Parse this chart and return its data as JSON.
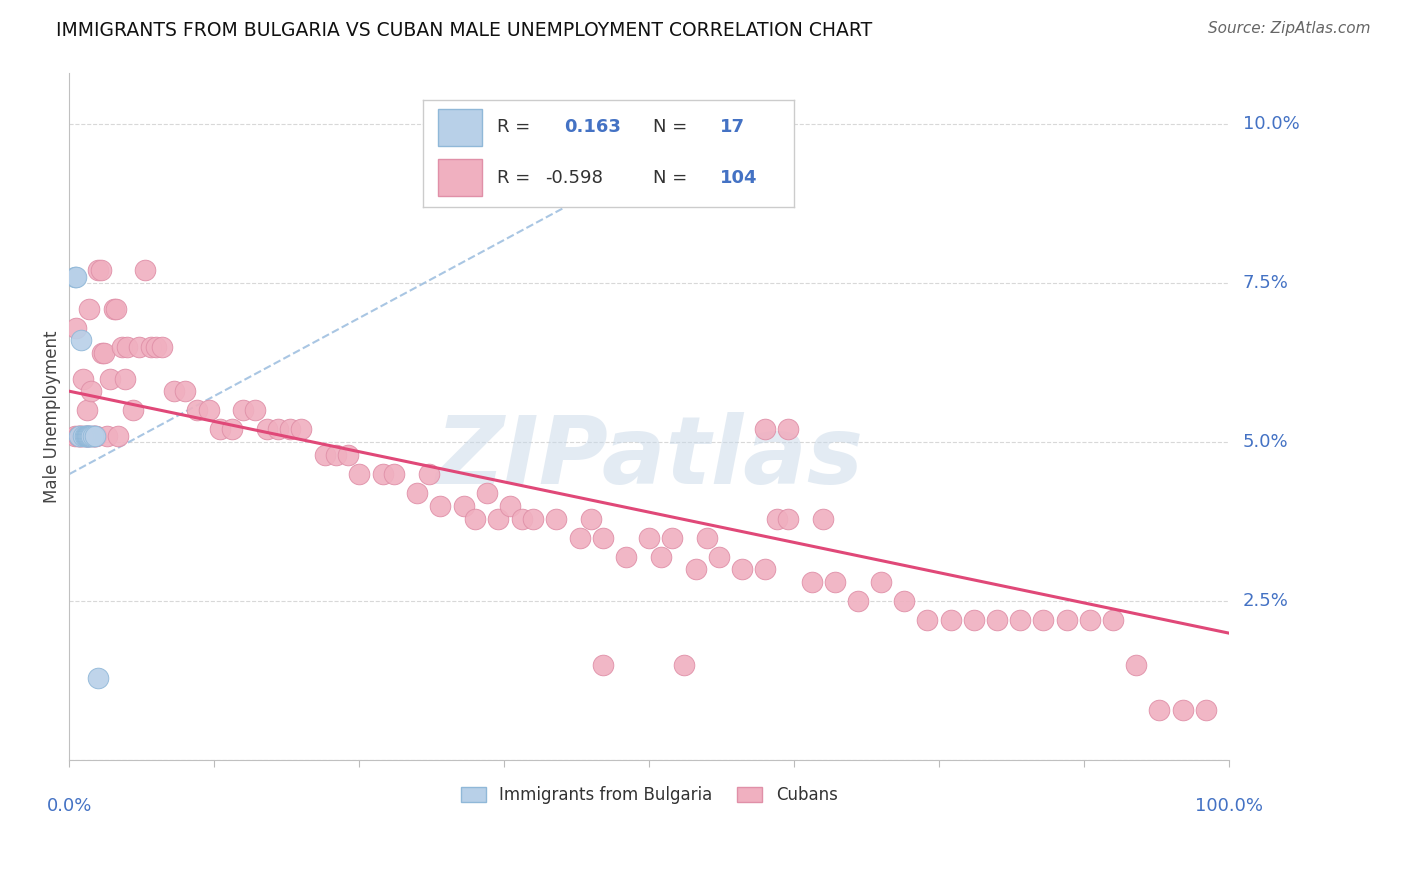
{
  "title": "IMMIGRANTS FROM BULGARIA VS CUBAN MALE UNEMPLOYMENT CORRELATION CHART",
  "source": "Source: ZipAtlas.com",
  "ylabel": "Male Unemployment",
  "bg_color": "#ffffff",
  "blue_scatter": "#b8d0e8",
  "blue_scatter_edge": "#90b8d8",
  "pink_scatter": "#f0b0c0",
  "pink_scatter_edge": "#e090a8",
  "blue_line_color": "#a0c0e0",
  "pink_line_color": "#e04878",
  "text_blue": "#4472c4",
  "grid_color": "#d8d8d8",
  "watermark_text": "ZIPatlas",
  "watermark_color": "#c8d8e8",
  "legend_r_blue": "0.163",
  "legend_n_blue": "17",
  "legend_r_pink": "-0.598",
  "legend_n_pink": "104",
  "xlim": [
    0.0,
    1.0
  ],
  "ylim": [
    0.0,
    0.108
  ],
  "ytick_vals": [
    0.0,
    0.025,
    0.05,
    0.075,
    0.1
  ],
  "bg_x": [
    0.005,
    0.006,
    0.008,
    0.01,
    0.012,
    0.013,
    0.014,
    0.015,
    0.015,
    0.016,
    0.016,
    0.017,
    0.018,
    0.019,
    0.02,
    0.022,
    0.025
  ],
  "bg_y": [
    0.076,
    0.076,
    0.051,
    0.066,
    0.051,
    0.051,
    0.051,
    0.051,
    0.051,
    0.051,
    0.051,
    0.051,
    0.051,
    0.051,
    0.051,
    0.051,
    0.013
  ],
  "bg_line_x0": 0.0,
  "bg_line_x1": 0.52,
  "bg_line_y0": 0.045,
  "bg_line_y1": 0.096,
  "cuba_line_x0": 0.0,
  "cuba_line_x1": 1.0,
  "cuba_line_y0": 0.058,
  "cuba_line_y1": 0.02,
  "cuba_x": [
    0.005,
    0.006,
    0.007,
    0.008,
    0.009,
    0.01,
    0.011,
    0.012,
    0.013,
    0.014,
    0.015,
    0.015,
    0.016,
    0.017,
    0.018,
    0.019,
    0.02,
    0.021,
    0.022,
    0.023,
    0.025,
    0.027,
    0.028,
    0.03,
    0.032,
    0.035,
    0.038,
    0.04,
    0.042,
    0.045,
    0.048,
    0.05,
    0.055,
    0.06,
    0.065,
    0.07,
    0.075,
    0.08,
    0.09,
    0.1,
    0.11,
    0.12,
    0.13,
    0.14,
    0.15,
    0.16,
    0.17,
    0.18,
    0.19,
    0.2,
    0.22,
    0.23,
    0.24,
    0.25,
    0.27,
    0.28,
    0.3,
    0.31,
    0.32,
    0.34,
    0.35,
    0.36,
    0.37,
    0.38,
    0.39,
    0.4,
    0.42,
    0.44,
    0.45,
    0.46,
    0.48,
    0.5,
    0.51,
    0.52,
    0.54,
    0.55,
    0.56,
    0.58,
    0.6,
    0.61,
    0.62,
    0.64,
    0.65,
    0.66,
    0.68,
    0.7,
    0.72,
    0.74,
    0.76,
    0.78,
    0.8,
    0.82,
    0.84,
    0.86,
    0.88,
    0.9,
    0.92,
    0.94,
    0.96,
    0.98,
    0.6,
    0.62,
    0.53,
    0.46
  ],
  "cuba_y": [
    0.051,
    0.068,
    0.051,
    0.051,
    0.051,
    0.051,
    0.051,
    0.06,
    0.051,
    0.051,
    0.051,
    0.055,
    0.051,
    0.071,
    0.051,
    0.058,
    0.051,
    0.051,
    0.051,
    0.051,
    0.077,
    0.077,
    0.064,
    0.064,
    0.051,
    0.06,
    0.071,
    0.071,
    0.051,
    0.065,
    0.06,
    0.065,
    0.055,
    0.065,
    0.077,
    0.065,
    0.065,
    0.065,
    0.058,
    0.058,
    0.055,
    0.055,
    0.052,
    0.052,
    0.055,
    0.055,
    0.052,
    0.052,
    0.052,
    0.052,
    0.048,
    0.048,
    0.048,
    0.045,
    0.045,
    0.045,
    0.042,
    0.045,
    0.04,
    0.04,
    0.038,
    0.042,
    0.038,
    0.04,
    0.038,
    0.038,
    0.038,
    0.035,
    0.038,
    0.035,
    0.032,
    0.035,
    0.032,
    0.035,
    0.03,
    0.035,
    0.032,
    0.03,
    0.03,
    0.038,
    0.038,
    0.028,
    0.038,
    0.028,
    0.025,
    0.028,
    0.025,
    0.022,
    0.022,
    0.022,
    0.022,
    0.022,
    0.022,
    0.022,
    0.022,
    0.022,
    0.015,
    0.008,
    0.008,
    0.008,
    0.052,
    0.052,
    0.015,
    0.015
  ]
}
